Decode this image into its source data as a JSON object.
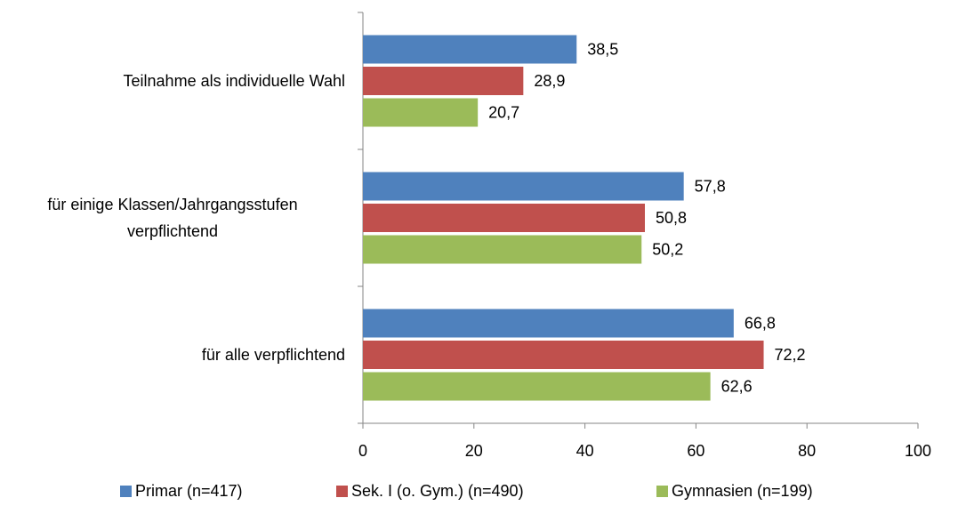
{
  "chart_data": {
    "type": "bar",
    "orientation": "horizontal",
    "categories": [
      "Teilnahme als individuelle Wahl",
      "für einige Klassen/Jahrgangsstufen verpflichtend",
      "für alle verpflichtend"
    ],
    "series": [
      {
        "name": "Primar (n=417)",
        "color": "#4f81bd",
        "values": [
          38.5,
          57.8,
          66.8
        ],
        "value_labels": [
          "38,5",
          "57,8",
          "66,8"
        ]
      },
      {
        "name": "Sek. I (o. Gym.) (n=490)",
        "color": "#c0504d",
        "values": [
          28.9,
          50.8,
          72.2
        ],
        "value_labels": [
          "28,9",
          "50,8",
          "72,2"
        ]
      },
      {
        "name": "Gymnasien (n=199)",
        "color": "#9bbb59",
        "values": [
          20.7,
          50.2,
          62.6
        ],
        "value_labels": [
          "20,7",
          "50,2",
          "62,6"
        ]
      }
    ],
    "xlim": [
      0,
      100
    ],
    "xticks": [
      0,
      20,
      40,
      60,
      80,
      100
    ],
    "grid": false,
    "legend": "bottom"
  }
}
